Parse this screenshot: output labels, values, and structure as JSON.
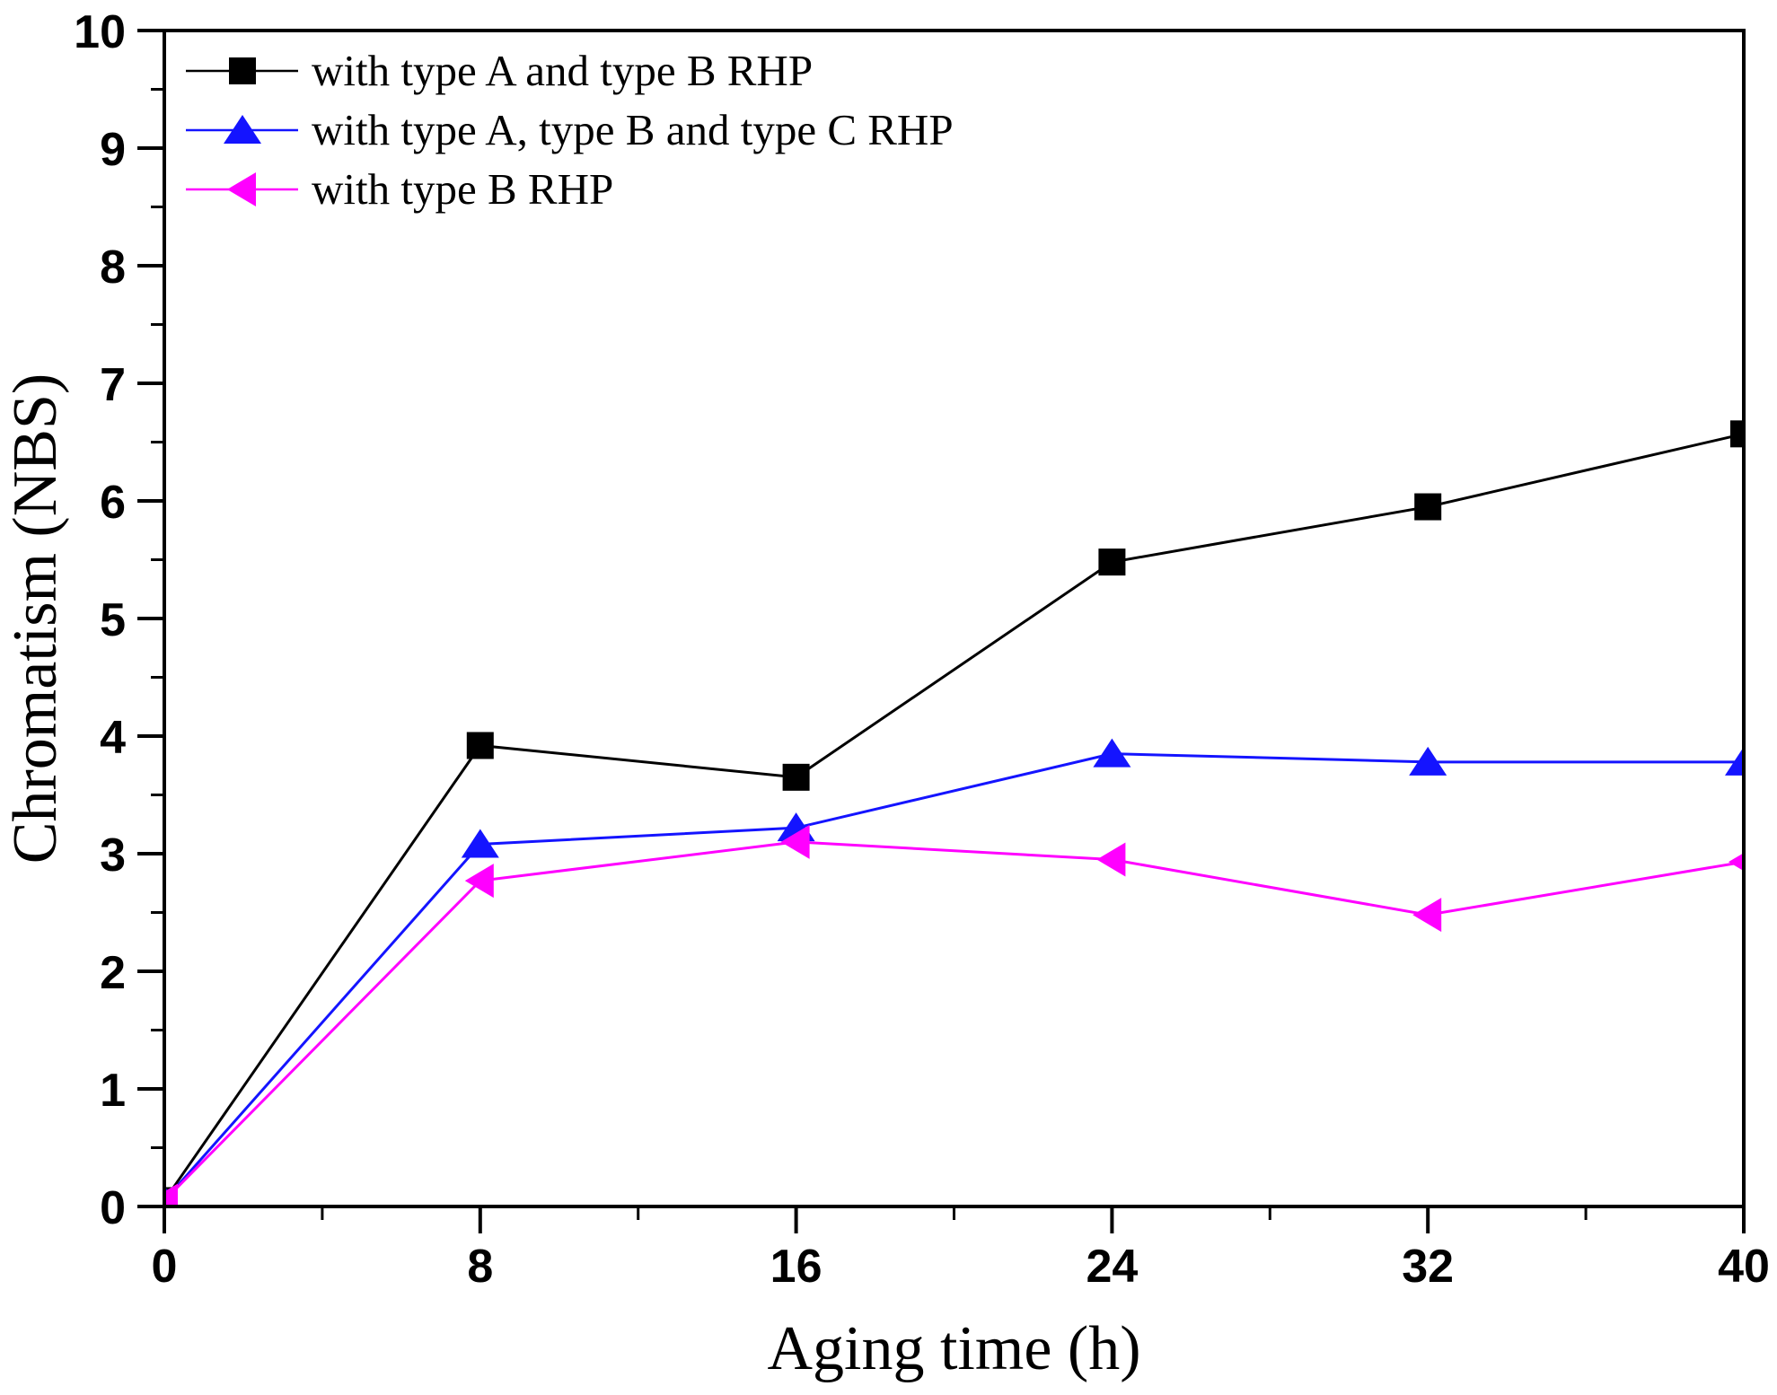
{
  "chart_data": {
    "type": "line",
    "title": "",
    "xlabel": "Aging time (h)",
    "ylabel": "Chromatism (NBS)",
    "xlim": [
      0,
      40
    ],
    "ylim": [
      0,
      10
    ],
    "x_major_ticks": [
      0,
      8,
      16,
      24,
      32,
      40
    ],
    "x_minor_ticks": [
      4,
      12,
      20,
      28,
      36
    ],
    "y_major_ticks": [
      0,
      1,
      2,
      3,
      4,
      5,
      6,
      7,
      8,
      9,
      10
    ],
    "y_minor_ticks": [
      0.5,
      1.5,
      2.5,
      3.5,
      4.5,
      5.5,
      6.5,
      7.5,
      8.5,
      9.5
    ],
    "grid": false,
    "legend_position": "top-left",
    "x": [
      0,
      8,
      16,
      24,
      32,
      40
    ],
    "series": [
      {
        "name": "with type A and type B RHP",
        "marker": "square",
        "color": "#000000",
        "values": [
          0.05,
          3.92,
          3.65,
          5.48,
          5.95,
          6.57
        ]
      },
      {
        "name": "with type A, type B and type C RHP",
        "marker": "triangle-up",
        "color": "#1414ff",
        "values": [
          0.05,
          3.08,
          3.22,
          3.85,
          3.78,
          3.78
        ]
      },
      {
        "name": "with type B RHP",
        "marker": "triangle-left",
        "color": "#ff00ff",
        "values": [
          0.05,
          2.77,
          3.1,
          2.95,
          2.48,
          2.93
        ]
      }
    ]
  }
}
